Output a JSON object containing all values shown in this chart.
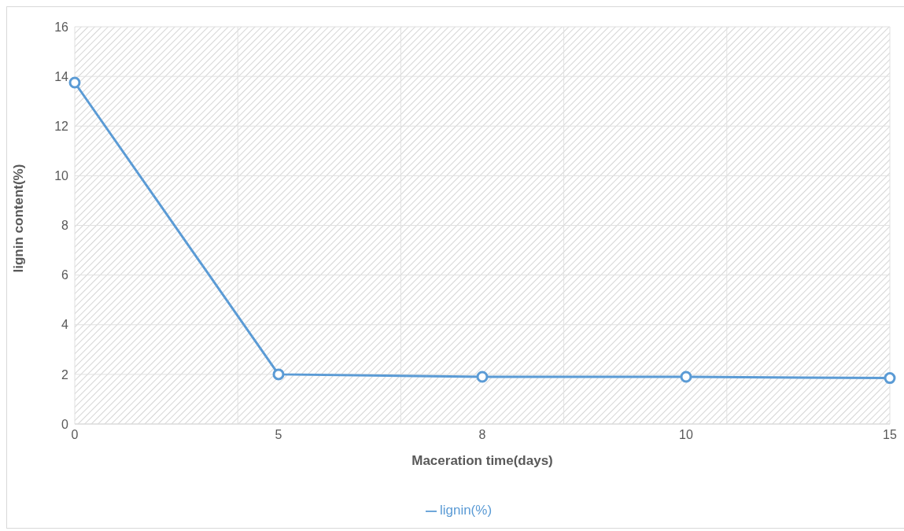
{
  "chart_data": {
    "type": "line",
    "xlabel": "Maceration time(days)",
    "ylabel": "lignin content(%)",
    "categories": [
      "0",
      "5",
      "8",
      "10",
      "15"
    ],
    "series": [
      {
        "name": "lignin(%)",
        "color": "#5b9bd5",
        "values": [
          13.75,
          2.0,
          1.9,
          1.9,
          1.85
        ]
      }
    ],
    "ylim": [
      0,
      16
    ],
    "yticks": [
      0,
      2,
      4,
      6,
      8,
      10,
      12,
      14,
      16
    ],
    "grid": true,
    "legend": "bottom",
    "marker": "circle",
    "line_style": "solid"
  }
}
